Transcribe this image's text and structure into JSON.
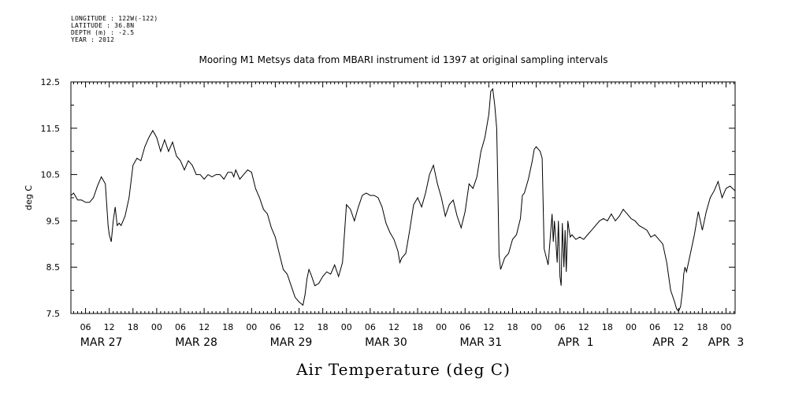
{
  "header": {
    "longitude": "LONGITUDE : 122W(-122)",
    "latitude": "LATITUDE : 36.8N",
    "depth": "DEPTH (m) : -2.5",
    "year": "YEAR : 2012"
  },
  "chart_data": {
    "type": "line",
    "title": "Mooring M1 Metsys data from MBARI instrument id 1397 at original sampling intervals",
    "xlabel": "Air Temperature (deg C)",
    "ylabel": "deg C",
    "ylim": [
      7.5,
      12.5
    ],
    "xlim_hours": [
      2.3,
      170.3
    ],
    "y_ticks": [
      "12.5",
      "11.5",
      "10.5",
      "9.5",
      "8.5",
      "7.5"
    ],
    "y_tick_values": [
      12.5,
      11.5,
      10.5,
      9.5,
      8.5,
      7.5
    ],
    "hour_ticks": [
      {
        "h": 6,
        "label": "06"
      },
      {
        "h": 12,
        "label": "12"
      },
      {
        "h": 18,
        "label": "18"
      },
      {
        "h": 24,
        "label": "00"
      },
      {
        "h": 30,
        "label": "06"
      },
      {
        "h": 36,
        "label": "12"
      },
      {
        "h": 42,
        "label": "18"
      },
      {
        "h": 48,
        "label": "00"
      },
      {
        "h": 54,
        "label": "06"
      },
      {
        "h": 60,
        "label": "12"
      },
      {
        "h": 66,
        "label": "18"
      },
      {
        "h": 72,
        "label": "00"
      },
      {
        "h": 78,
        "label": "06"
      },
      {
        "h": 84,
        "label": "12"
      },
      {
        "h": 90,
        "label": "18"
      },
      {
        "h": 96,
        "label": "00"
      },
      {
        "h": 102,
        "label": "06"
      },
      {
        "h": 108,
        "label": "12"
      },
      {
        "h": 114,
        "label": "18"
      },
      {
        "h": 120,
        "label": "00"
      },
      {
        "h": 126,
        "label": "06"
      },
      {
        "h": 132,
        "label": "12"
      },
      {
        "h": 138,
        "label": "18"
      },
      {
        "h": 144,
        "label": "00"
      },
      {
        "h": 150,
        "label": "06"
      },
      {
        "h": 156,
        "label": "12"
      },
      {
        "h": 162,
        "label": "18"
      },
      {
        "h": 168,
        "label": "00"
      }
    ],
    "date_labels": [
      {
        "h": 10,
        "label": "MAR 27"
      },
      {
        "h": 34,
        "label": "MAR 28"
      },
      {
        "h": 58,
        "label": "MAR 29"
      },
      {
        "h": 82,
        "label": "MAR 30"
      },
      {
        "h": 106,
        "label": "MAR 31"
      },
      {
        "h": 130,
        "label": "APR  1"
      },
      {
        "h": 154,
        "label": "APR  2"
      },
      {
        "h": 168,
        "label": "APR  3"
      }
    ],
    "series": [
      {
        "x": [
          2.3,
          3,
          4,
          5,
          6,
          7,
          8,
          9,
          10,
          11,
          11.7,
          12,
          12.5,
          13,
          13.5,
          14,
          14.5,
          15,
          16,
          17,
          18,
          19,
          20,
          21,
          22,
          23,
          24,
          25,
          26,
          27,
          28,
          29,
          30,
          31,
          32,
          33,
          34,
          35,
          36,
          37,
          38,
          39,
          40,
          41,
          42,
          43,
          43.5,
          44,
          45,
          46,
          47,
          48,
          49,
          50,
          51,
          52,
          53,
          54,
          55,
          56,
          57,
          58,
          59,
          60,
          61,
          61.5,
          62,
          62.5,
          63,
          64,
          65,
          66,
          67,
          68,
          69,
          70,
          71,
          72,
          73,
          74,
          75,
          76,
          77,
          78,
          79,
          80,
          81,
          82,
          83,
          84,
          85,
          85.5,
          86,
          87,
          88,
          89,
          90,
          91,
          92,
          93,
          94,
          95,
          96,
          97,
          98,
          99,
          100,
          101,
          102,
          103,
          104,
          105,
          106,
          107,
          108,
          108.5,
          109,
          109.5,
          110,
          110.3,
          110.6,
          111,
          112,
          113,
          114,
          115,
          116,
          116.5,
          117,
          118,
          119,
          119.2,
          119.5,
          120,
          121,
          121.5,
          122,
          123,
          124,
          124.3,
          124.6,
          125,
          125.3,
          125.6,
          126,
          126.3,
          126.6,
          127,
          127.3,
          127.6,
          128,
          128.3,
          128.6,
          129,
          130,
          131,
          132,
          133,
          134,
          135,
          136,
          137,
          138,
          139,
          140,
          141,
          142,
          143,
          144,
          145,
          146,
          147,
          148,
          149,
          150,
          151,
          152,
          153,
          154,
          155,
          155.5,
          156,
          156.5,
          157,
          157.3,
          157.6,
          158,
          159,
          160,
          161,
          162,
          163,
          164,
          165,
          166,
          167,
          168,
          169,
          170.3
        ],
        "y": [
          10.05,
          10.1,
          9.95,
          9.95,
          9.9,
          9.9,
          10.0,
          10.25,
          10.45,
          10.3,
          9.4,
          9.2,
          9.05,
          9.5,
          9.8,
          9.4,
          9.45,
          9.4,
          9.6,
          10.0,
          10.7,
          10.85,
          10.8,
          11.1,
          11.3,
          11.45,
          11.3,
          11.0,
          11.25,
          11.0,
          11.2,
          10.9,
          10.8,
          10.6,
          10.8,
          10.7,
          10.5,
          10.5,
          10.4,
          10.5,
          10.45,
          10.5,
          10.5,
          10.4,
          10.55,
          10.55,
          10.45,
          10.6,
          10.4,
          10.5,
          10.6,
          10.55,
          10.2,
          10.0,
          9.75,
          9.65,
          9.35,
          9.15,
          8.8,
          8.45,
          8.35,
          8.1,
          7.85,
          7.75,
          7.68,
          7.9,
          8.25,
          8.45,
          8.35,
          8.1,
          8.15,
          8.3,
          8.4,
          8.35,
          8.55,
          8.3,
          8.6,
          9.85,
          9.75,
          9.5,
          9.8,
          10.05,
          10.1,
          10.05,
          10.05,
          10.0,
          9.8,
          9.45,
          9.25,
          9.1,
          8.85,
          8.6,
          8.7,
          8.8,
          9.3,
          9.85,
          10.0,
          9.8,
          10.1,
          10.5,
          10.7,
          10.3,
          10.0,
          9.6,
          9.85,
          9.95,
          9.6,
          9.35,
          9.7,
          10.3,
          10.2,
          10.45,
          11.0,
          11.3,
          11.8,
          12.3,
          12.35,
          12.0,
          11.5,
          10.2,
          8.75,
          8.45,
          8.7,
          8.8,
          9.1,
          9.2,
          9.55,
          10.05,
          10.1,
          10.4,
          10.8,
          10.9,
          11.05,
          11.1,
          11.0,
          10.85,
          8.9,
          8.55,
          9.65,
          9.05,
          9.5,
          9.0,
          8.6,
          9.5,
          8.3,
          8.1,
          9.45,
          8.5,
          9.3,
          8.4,
          9.5,
          9.3,
          9.15,
          9.2,
          9.1,
          9.15,
          9.1,
          9.2,
          9.3,
          9.4,
          9.5,
          9.55,
          9.5,
          9.65,
          9.5,
          9.6,
          9.75,
          9.65,
          9.55,
          9.5,
          9.4,
          9.35,
          9.3,
          9.15,
          9.2,
          9.1,
          9.0,
          8.6,
          8.0,
          7.75,
          7.6,
          7.55,
          7.65,
          8.0,
          8.35,
          8.5,
          8.4,
          8.8,
          9.2,
          9.7,
          9.3,
          9.7,
          10.0,
          10.15,
          10.35,
          10.0,
          10.2,
          10.25,
          10.15
        ]
      }
    ]
  }
}
